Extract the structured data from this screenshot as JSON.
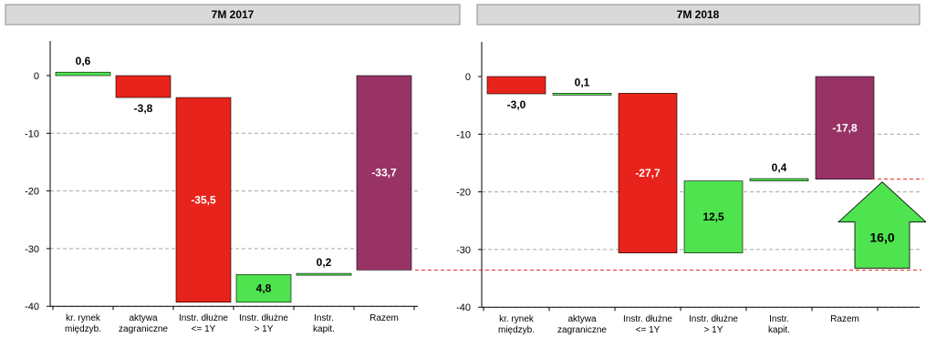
{
  "colors": {
    "red": "#e8231b",
    "green": "#4fe34f",
    "purple": "#993366",
    "ref_line": "#e8231b"
  },
  "chart_data": [
    {
      "type": "bar",
      "title": "7M 2017",
      "ylim": [
        -40,
        0
      ],
      "yticks": [
        0,
        -10,
        -20,
        -30,
        -40
      ],
      "ytick_labels": [
        "0",
        "-10",
        "-20",
        "-30",
        "-40"
      ],
      "grid": true,
      "categories": [
        [
          "kr. rynek",
          "międzyb."
        ],
        [
          "aktywa",
          "zagraniczne"
        ],
        [
          "Instr. dłużne",
          "<= 1Y"
        ],
        [
          "Instr. dłużne",
          "> 1Y"
        ],
        [
          "Instr.",
          "kapit."
        ],
        [
          "Razem"
        ]
      ],
      "bars": [
        {
          "from": 0,
          "to": 0.6,
          "color": "green",
          "label": "0,6"
        },
        {
          "from": 0,
          "to": -3.8,
          "color": "red",
          "label": "-3,8"
        },
        {
          "from": -3.8,
          "to": -39.3,
          "color": "red",
          "label": "-35,5"
        },
        {
          "from": -39.3,
          "to": -34.5,
          "color": "green",
          "label": "4,8"
        },
        {
          "from": -34.5,
          "to": -34.3,
          "color": "green",
          "label": "0,2"
        },
        {
          "from": 0,
          "to": -33.7,
          "color": "purple",
          "label": "-33,7"
        }
      ]
    },
    {
      "type": "bar",
      "title": "7M 2018",
      "ylim": [
        -40,
        0
      ],
      "yticks": [
        0,
        -10,
        -20,
        -30,
        -40
      ],
      "ytick_labels": [
        "0",
        "-10",
        "-20",
        "-30",
        "-40"
      ],
      "grid": true,
      "categories": [
        [
          "kr. rynek",
          "międzyb."
        ],
        [
          "aktywa",
          "zagraniczne"
        ],
        [
          "Instr. dłużne",
          "<= 1Y"
        ],
        [
          "Instr. dłużne",
          "> 1Y"
        ],
        [
          "Instr.",
          "kapit."
        ],
        [
          "Razem"
        ]
      ],
      "bars": [
        {
          "from": 0,
          "to": -3.0,
          "color": "red",
          "label": "-3,0"
        },
        {
          "from": -3.0,
          "to": -2.9,
          "color": "green",
          "label": "0,1"
        },
        {
          "from": -2.9,
          "to": -30.6,
          "color": "red",
          "label": "-27,7"
        },
        {
          "from": -30.6,
          "to": -18.1,
          "color": "green",
          "label": "12,5"
        },
        {
          "from": -18.1,
          "to": -17.7,
          "color": "green",
          "label": "0,4"
        },
        {
          "from": 0,
          "to": -17.8,
          "color": "purple",
          "label": "-17,8"
        }
      ],
      "annotation": {
        "type": "up-arrow",
        "from": -33.7,
        "to": -17.8,
        "label": "16,0"
      }
    }
  ]
}
